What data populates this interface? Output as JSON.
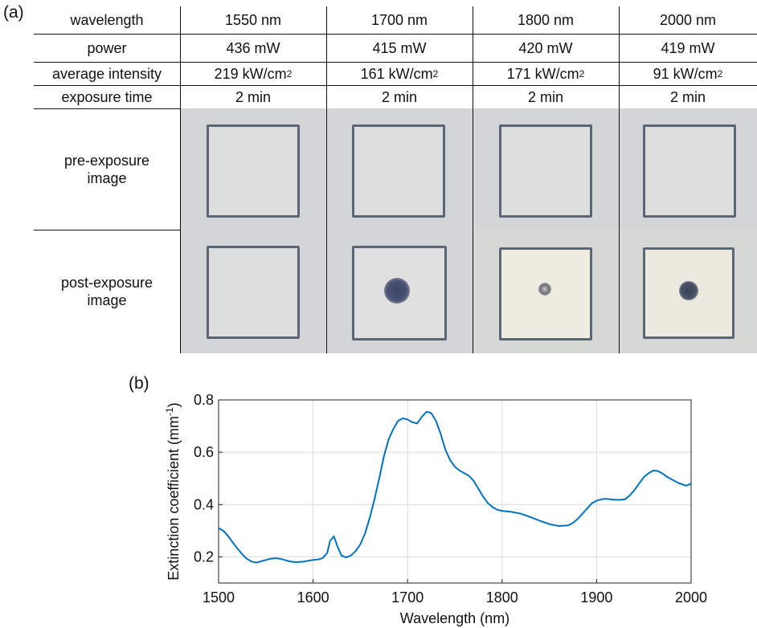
{
  "panel_a_label": "(a)",
  "panel_b_label": "(b)",
  "table": {
    "row_labels": [
      "wavelength",
      "power",
      "average intensity",
      "exposure time"
    ],
    "image_row_labels": [
      "pre-exposure\nimage",
      "post-exposure\nimage"
    ],
    "columns": [
      {
        "wavelength": "1550 nm",
        "power": "436 mW",
        "intensity": "219 kW/cm",
        "time": "2 min"
      },
      {
        "wavelength": "1700 nm",
        "power": "415 mW",
        "intensity": "161 kW/cm",
        "time": "2 min"
      },
      {
        "wavelength": "1800 nm",
        "power": "420 mW",
        "intensity": "171 kW/cm",
        "time": "2 min"
      },
      {
        "wavelength": "2000 nm",
        "power": "419 mW",
        "intensity": "91 kW/cm",
        "time": "2 min"
      }
    ],
    "intensity_superscript": "2",
    "post_exposure_spot": [
      "none",
      "large dark",
      "small",
      "medium dark"
    ]
  },
  "chart_data": {
    "type": "line",
    "xlabel": "Wavelength (nm)",
    "ylabel_main": "Extinction coefficient (mm",
    "ylabel_sup": "-1",
    "ylabel_close": ")",
    "xlim": [
      1500,
      2000
    ],
    "ylim": [
      0.1,
      0.8
    ],
    "xticks": [
      1500,
      1600,
      1700,
      1800,
      1900,
      2000
    ],
    "yticks": [
      0.2,
      0.4,
      0.6,
      0.8
    ],
    "ytick_labels": [
      "0.2",
      "0.4",
      "0.6",
      "0.8"
    ],
    "grid": true,
    "line_color": "#0072bd",
    "x": [
      1500,
      1505,
      1510,
      1515,
      1520,
      1525,
      1530,
      1535,
      1540,
      1545,
      1550,
      1555,
      1560,
      1565,
      1570,
      1575,
      1580,
      1585,
      1590,
      1595,
      1600,
      1605,
      1610,
      1615,
      1618,
      1622,
      1626,
      1630,
      1635,
      1640,
      1645,
      1650,
      1655,
      1660,
      1665,
      1670,
      1675,
      1680,
      1685,
      1690,
      1695,
      1700,
      1705,
      1710,
      1715,
      1720,
      1725,
      1730,
      1735,
      1740,
      1745,
      1750,
      1755,
      1760,
      1765,
      1770,
      1775,
      1780,
      1785,
      1790,
      1795,
      1800,
      1810,
      1820,
      1830,
      1840,
      1850,
      1860,
      1870,
      1875,
      1880,
      1885,
      1890,
      1895,
      1900,
      1905,
      1910,
      1915,
      1920,
      1925,
      1930,
      1935,
      1940,
      1945,
      1950,
      1955,
      1960,
      1965,
      1970,
      1975,
      1980,
      1985,
      1990,
      1995,
      2000
    ],
    "y": [
      0.31,
      0.3,
      0.28,
      0.255,
      0.232,
      0.21,
      0.192,
      0.182,
      0.178,
      0.183,
      0.188,
      0.193,
      0.195,
      0.193,
      0.188,
      0.183,
      0.18,
      0.18,
      0.182,
      0.185,
      0.188,
      0.19,
      0.195,
      0.215,
      0.262,
      0.278,
      0.238,
      0.205,
      0.198,
      0.205,
      0.222,
      0.248,
      0.29,
      0.35,
      0.42,
      0.5,
      0.585,
      0.65,
      0.69,
      0.72,
      0.73,
      0.725,
      0.715,
      0.71,
      0.735,
      0.755,
      0.75,
      0.72,
      0.67,
      0.61,
      0.57,
      0.545,
      0.53,
      0.52,
      0.51,
      0.49,
      0.46,
      0.43,
      0.405,
      0.39,
      0.38,
      0.376,
      0.372,
      0.365,
      0.352,
      0.338,
      0.325,
      0.318,
      0.32,
      0.33,
      0.345,
      0.365,
      0.385,
      0.405,
      0.415,
      0.42,
      0.422,
      0.42,
      0.418,
      0.418,
      0.42,
      0.435,
      0.455,
      0.48,
      0.505,
      0.52,
      0.53,
      0.528,
      0.518,
      0.505,
      0.495,
      0.485,
      0.478,
      0.472,
      0.48
    ]
  }
}
